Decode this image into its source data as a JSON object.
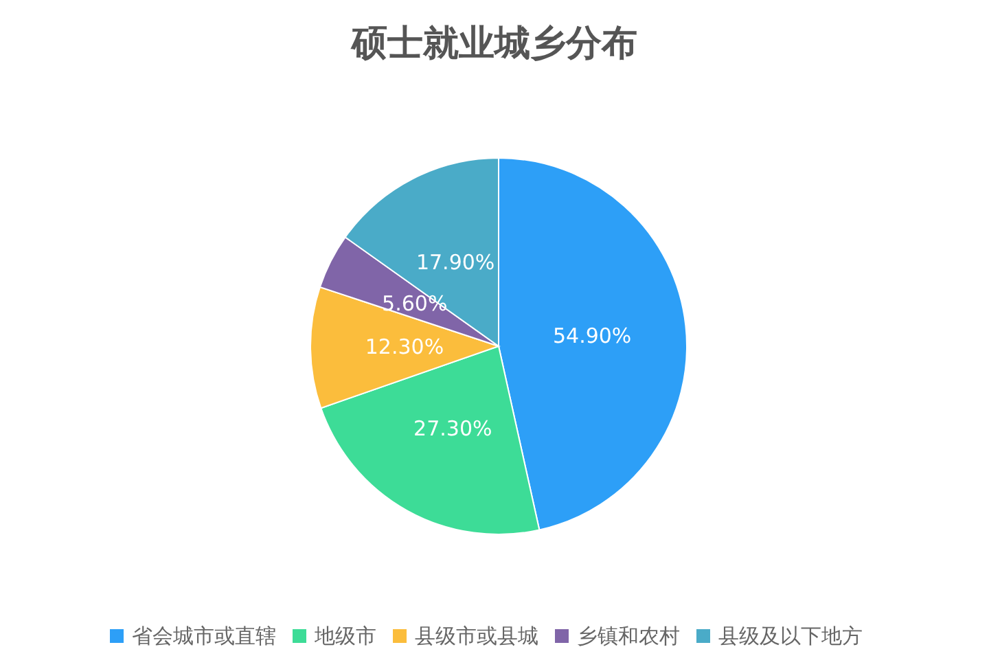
{
  "chart_data": {
    "type": "pie",
    "title": "硕士就业城乡分布",
    "categories": [
      "省会城市或直辖",
      "地级市",
      "县级市或县城",
      "乡镇和农村",
      "县级及以下地方"
    ],
    "values": [
      54.9,
      27.3,
      12.3,
      5.6,
      17.9
    ],
    "value_labels": [
      "54.90%",
      "27.30%",
      "12.30%",
      "5.60%",
      "17.90%"
    ],
    "colors": [
      "#2d9ff7",
      "#3ddc97",
      "#fbbd3c",
      "#8065a8",
      "#4aabc8"
    ],
    "legend": "bottom"
  }
}
